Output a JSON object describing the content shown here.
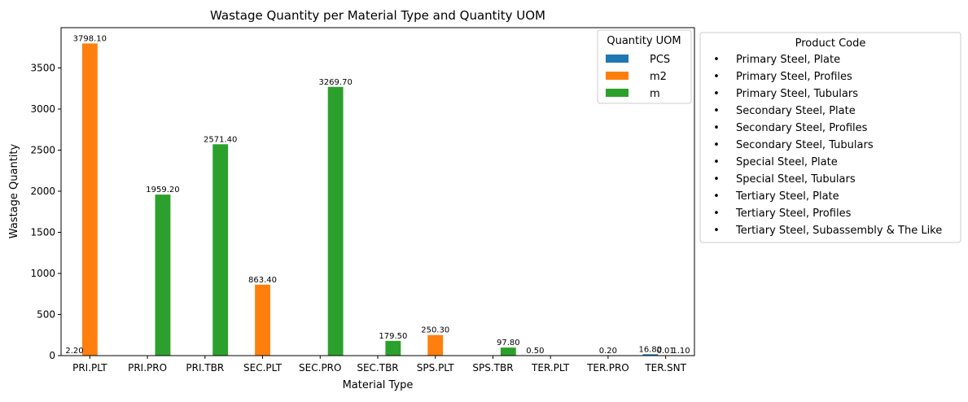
{
  "chart_data": {
    "type": "bar",
    "title": "Wastage Quantity per Material Type and Quantity UOM",
    "xlabel": "Material Type",
    "ylabel": "Wastage Quantity",
    "ylim": [
      0,
      3990
    ],
    "yticks": [
      0,
      500,
      1000,
      1500,
      2000,
      2500,
      3000,
      3500
    ],
    "grid": false,
    "categories": [
      "PRI.PLT",
      "PRI.PRO",
      "PRI.TBR",
      "SEC.PLT",
      "SEC.PRO",
      "SEC.TBR",
      "SPS.PLT",
      "SPS.TBR",
      "TER.PLT",
      "TER.PRO",
      "TER.SNT"
    ],
    "series": [
      {
        "name": "PCS",
        "color": "#1f77b4",
        "values": [
          2.2,
          null,
          null,
          null,
          null,
          null,
          null,
          null,
          0.5,
          null,
          16.8
        ]
      },
      {
        "name": "m2",
        "color": "#ff7f0e",
        "values": [
          3798.1,
          null,
          null,
          863.4,
          null,
          null,
          250.3,
          null,
          null,
          0.2,
          0.01
        ]
      },
      {
        "name": "m",
        "color": "#2ca02c",
        "values": [
          null,
          1959.2,
          2571.4,
          null,
          3269.7,
          179.5,
          null,
          97.8,
          null,
          null,
          1.1
        ]
      }
    ],
    "data_labels": [
      {
        "category": "PRI.PLT",
        "series": "PCS",
        "text": "2.20"
      },
      {
        "category": "PRI.PLT",
        "series": "m2",
        "text": "3798.10"
      },
      {
        "category": "PRI.PRO",
        "series": "m",
        "text": "1959.20"
      },
      {
        "category": "PRI.TBR",
        "series": "m",
        "text": "2571.40"
      },
      {
        "category": "SEC.PLT",
        "series": "m2",
        "text": "863.40"
      },
      {
        "category": "SEC.PRO",
        "series": "m",
        "text": "3269.70"
      },
      {
        "category": "SEC.TBR",
        "series": "m",
        "text": "179.50"
      },
      {
        "category": "SPS.PLT",
        "series": "m2",
        "text": "250.30"
      },
      {
        "category": "SPS.TBR",
        "series": "m",
        "text": "97.80"
      },
      {
        "category": "TER.PLT",
        "series": "PCS",
        "text": "0.50"
      },
      {
        "category": "TER.PRO",
        "series": "m2",
        "text": "0.20"
      },
      {
        "category": "TER.SNT",
        "series": "PCS",
        "text": "16.80"
      },
      {
        "category": "TER.SNT",
        "series": "m2",
        "text": "0.01"
      },
      {
        "category": "TER.SNT",
        "series": "m",
        "text": "1.10"
      }
    ],
    "legend": {
      "title": "Quantity UOM",
      "placement": "top-right",
      "entries": [
        "PCS",
        "m2",
        "m"
      ]
    },
    "product_legend": {
      "title": "Product Code",
      "placement": "outside-right",
      "marker": "•",
      "entries": [
        "Primary Steel, Plate",
        "Primary Steel, Profiles",
        "Primary Steel, Tubulars",
        "Secondary Steel, Plate",
        "Secondary Steel, Profiles",
        "Secondary Steel, Tubulars",
        "Special Steel, Plate",
        "Special Steel, Tubulars",
        "Tertiary Steel, Plate",
        "Tertiary Steel, Profiles",
        "Tertiary Steel, Subassembly & The Like"
      ]
    }
  }
}
